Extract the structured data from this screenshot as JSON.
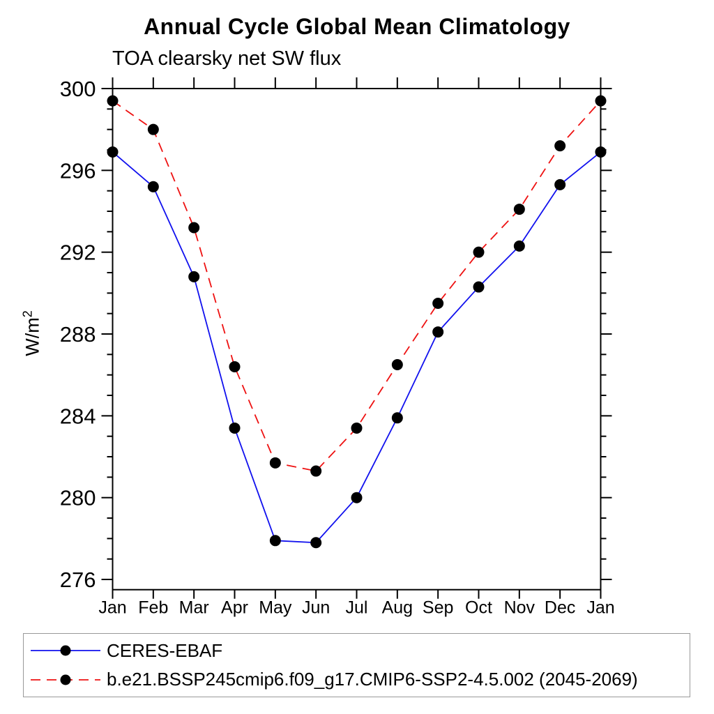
{
  "chart_data": {
    "type": "line",
    "title": "Annual Cycle Global Mean Climatology",
    "subtitle": "TOA clearsky net SW flux",
    "xlabel": "",
    "ylabel": "W/m²",
    "ylabel_display": {
      "base": "W/m",
      "exponent": "2"
    },
    "x": [
      "Jan",
      "Feb",
      "Mar",
      "Apr",
      "May",
      "Jun",
      "Jul",
      "Aug",
      "Sep",
      "Oct",
      "Nov",
      "Dec",
      "Jan"
    ],
    "ylim": [
      275.5,
      300
    ],
    "ytick_major": [
      276,
      280,
      284,
      288,
      292,
      296,
      300
    ],
    "ytick_minor_step": 1,
    "grid": false,
    "legend_position": "bottom-left-box",
    "axis_color": "#000000",
    "marker": "filled-circle",
    "marker_color": "#000000",
    "series": [
      {
        "name": "CERES-EBAF",
        "color": "#1111ee",
        "line_style": "solid",
        "values": [
          296.9,
          295.2,
          290.8,
          283.4,
          277.9,
          277.8,
          280.0,
          283.9,
          288.1,
          290.3,
          292.3,
          295.3,
          296.9
        ]
      },
      {
        "name": "b.e21.BSSP245cmip6.f09_g17.CMIP6-SSP2-4.5.002 (2045-2069)",
        "color": "#ee1111",
        "line_style": "dashed",
        "values": [
          299.4,
          298.0,
          293.2,
          286.4,
          281.7,
          281.3,
          283.4,
          286.5,
          289.5,
          292.0,
          294.1,
          297.2,
          299.4
        ]
      }
    ]
  }
}
